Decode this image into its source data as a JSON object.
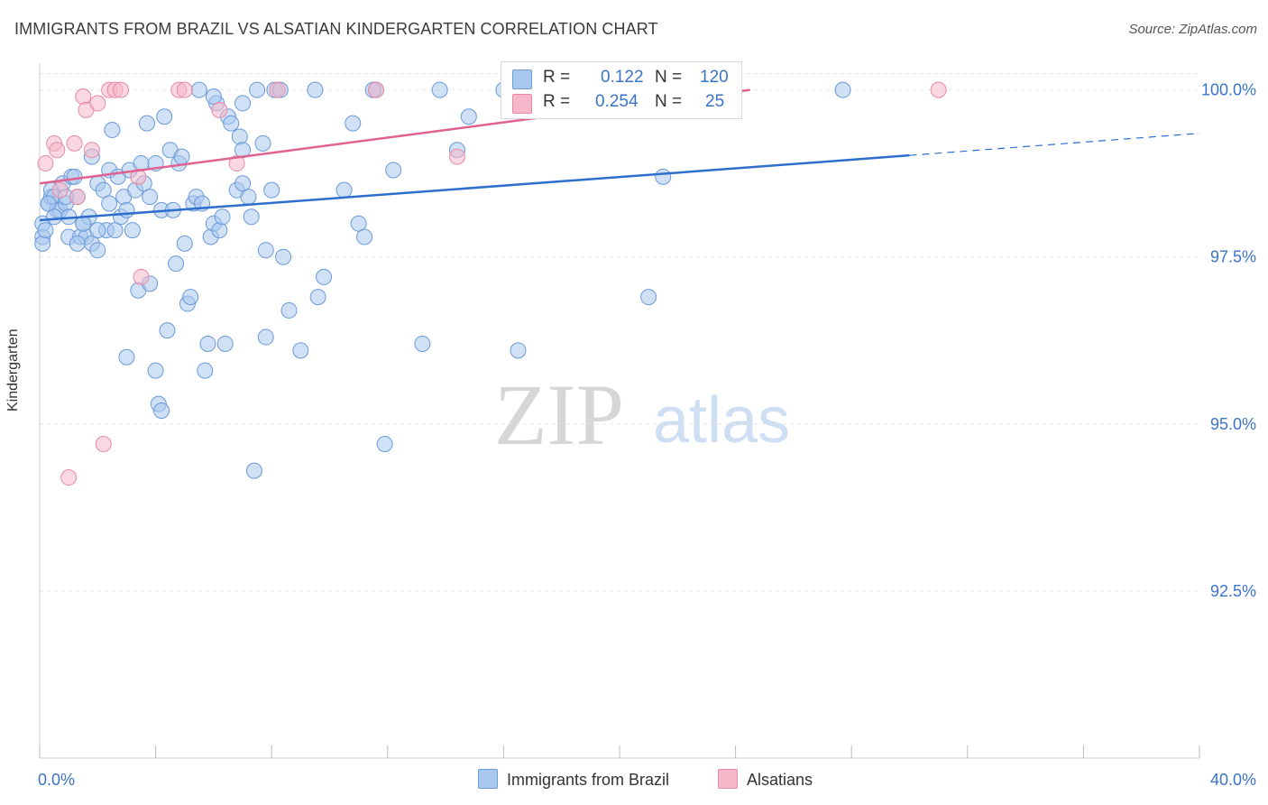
{
  "header": {
    "title": "IMMIGRANTS FROM BRAZIL VS ALSATIAN KINDERGARTEN CORRELATION CHART",
    "source": "Source: ZipAtlas.com"
  },
  "watermark": {
    "zip": "ZIP",
    "atlas": "atlas"
  },
  "legend": {
    "r_label": "R =",
    "n_label": "N =",
    "rows": [
      {
        "r": "0.122",
        "n": "120",
        "color": "#a9c8ef"
      },
      {
        "r": "0.254",
        "n": "25",
        "color": "#f6b8c9"
      }
    ]
  },
  "colors": {
    "blue_fill": "#a9c8ef",
    "blue_stroke": "#6b9ad8",
    "blue_line": "#2e6fcc",
    "pink_fill": "#f6b8c9",
    "pink_stroke": "#e68aa6",
    "pink_line": "#e06290",
    "axis_label": "#3a74c9",
    "grid": "#e6e6e6"
  },
  "chart_data": {
    "type": "scatter",
    "title": "IMMIGRANTS FROM BRAZIL VS ALSATIAN KINDERGARTEN CORRELATION CHART",
    "xlabel": "",
    "ylabel": "Kindergarten",
    "xlim": [
      0,
      40
    ],
    "ylim": [
      90.0,
      100.4
    ],
    "x_tick_labels": [
      "0.0%",
      "40.0%"
    ],
    "y_ticks": [
      {
        "value": 100.0,
        "label": "100.0%"
      },
      {
        "value": 97.5,
        "label": "97.5%"
      },
      {
        "value": 95.0,
        "label": "95.0%"
      },
      {
        "value": 92.5,
        "label": "92.5%"
      }
    ],
    "series": [
      {
        "name": "Immigrants from Brazil",
        "R": 0.122,
        "N": 120,
        "trend": {
          "x0": 0.0,
          "y0": 98.05,
          "x1": 30.0,
          "y1": 99.02,
          "dash_to_x": 40.0,
          "dash_to_y": 99.35
        },
        "points": [
          [
            0.1,
            97.8
          ],
          [
            0.1,
            98.0
          ],
          [
            0.1,
            97.7
          ],
          [
            0.2,
            97.9
          ],
          [
            0.3,
            98.3
          ],
          [
            0.4,
            98.4
          ],
          [
            0.4,
            98.5
          ],
          [
            0.5,
            98.4
          ],
          [
            0.6,
            98.2
          ],
          [
            0.7,
            98.2
          ],
          [
            0.8,
            98.6
          ],
          [
            0.9,
            98.3
          ],
          [
            1.0,
            98.1
          ],
          [
            1.0,
            97.8
          ],
          [
            1.1,
            98.7
          ],
          [
            1.2,
            98.7
          ],
          [
            1.3,
            98.4
          ],
          [
            1.4,
            97.8
          ],
          [
            1.5,
            98.0
          ],
          [
            1.6,
            97.8
          ],
          [
            1.7,
            98.1
          ],
          [
            1.8,
            97.7
          ],
          [
            1.8,
            99.0
          ],
          [
            2.0,
            98.6
          ],
          [
            2.0,
            97.6
          ],
          [
            2.2,
            98.5
          ],
          [
            2.3,
            97.9
          ],
          [
            2.4,
            98.8
          ],
          [
            2.4,
            98.3
          ],
          [
            2.5,
            99.4
          ],
          [
            2.6,
            97.9
          ],
          [
            2.7,
            98.7
          ],
          [
            2.8,
            98.1
          ],
          [
            2.9,
            98.4
          ],
          [
            3.0,
            96.0
          ],
          [
            3.1,
            98.8
          ],
          [
            3.2,
            97.9
          ],
          [
            3.3,
            98.5
          ],
          [
            3.4,
            97.0
          ],
          [
            3.5,
            98.9
          ],
          [
            3.6,
            98.6
          ],
          [
            3.7,
            99.5
          ],
          [
            3.8,
            98.4
          ],
          [
            3.8,
            97.1
          ],
          [
            4.0,
            98.9
          ],
          [
            4.0,
            95.8
          ],
          [
            4.1,
            95.3
          ],
          [
            4.2,
            95.2
          ],
          [
            4.2,
            98.2
          ],
          [
            4.3,
            99.6
          ],
          [
            4.4,
            96.4
          ],
          [
            4.5,
            99.1
          ],
          [
            4.6,
            98.2
          ],
          [
            4.7,
            97.4
          ],
          [
            4.8,
            98.9
          ],
          [
            4.9,
            99.0
          ],
          [
            5.0,
            97.7
          ],
          [
            5.1,
            96.8
          ],
          [
            5.2,
            96.9
          ],
          [
            5.3,
            98.3
          ],
          [
            5.4,
            98.4
          ],
          [
            5.5,
            100.0
          ],
          [
            5.6,
            98.3
          ],
          [
            5.7,
            95.8
          ],
          [
            5.8,
            96.2
          ],
          [
            5.9,
            97.8
          ],
          [
            6.0,
            98.0
          ],
          [
            6.1,
            99.8
          ],
          [
            6.2,
            97.9
          ],
          [
            6.3,
            98.1
          ],
          [
            6.4,
            96.2
          ],
          [
            6.5,
            99.6
          ],
          [
            6.6,
            99.5
          ],
          [
            6.8,
            98.5
          ],
          [
            6.9,
            99.3
          ],
          [
            7.0,
            99.8
          ],
          [
            7.0,
            99.1
          ],
          [
            7.2,
            98.4
          ],
          [
            7.3,
            98.1
          ],
          [
            7.4,
            94.3
          ],
          [
            7.5,
            100.0
          ],
          [
            7.7,
            99.2
          ],
          [
            7.8,
            96.3
          ],
          [
            7.8,
            97.6
          ],
          [
            8.0,
            98.5
          ],
          [
            8.1,
            100.0
          ],
          [
            8.3,
            100.0
          ],
          [
            8.4,
            97.5
          ],
          [
            8.6,
            96.7
          ],
          [
            9.0,
            96.1
          ],
          [
            9.5,
            100.0
          ],
          [
            9.6,
            96.9
          ],
          [
            9.8,
            97.2
          ],
          [
            10.5,
            98.5
          ],
          [
            10.8,
            99.5
          ],
          [
            11.0,
            98.0
          ],
          [
            11.2,
            97.8
          ],
          [
            11.6,
            100.0
          ],
          [
            11.9,
            94.7
          ],
          [
            12.2,
            98.8
          ],
          [
            13.2,
            96.2
          ],
          [
            13.8,
            100.0
          ],
          [
            14.4,
            99.1
          ],
          [
            14.8,
            99.6
          ],
          [
            16.0,
            100.0
          ],
          [
            16.2,
            100.0
          ],
          [
            16.5,
            96.1
          ],
          [
            21.0,
            96.9
          ],
          [
            21.5,
            98.7
          ],
          [
            27.7,
            100.0
          ],
          [
            0.3,
            98.3
          ],
          [
            1.5,
            98.0
          ],
          [
            2.0,
            97.9
          ],
          [
            3.0,
            98.2
          ],
          [
            6.0,
            99.9
          ],
          [
            7.0,
            98.6
          ],
          [
            11.5,
            100.0
          ],
          [
            0.5,
            98.1
          ],
          [
            0.9,
            98.4
          ],
          [
            1.3,
            97.7
          ]
        ]
      },
      {
        "name": "Alsatians",
        "R": 0.254,
        "N": 25,
        "trend": {
          "x0": 0.0,
          "y0": 98.6,
          "x1": 24.5,
          "y1": 100.0
        },
        "points": [
          [
            0.2,
            98.9
          ],
          [
            0.5,
            99.2
          ],
          [
            0.6,
            99.1
          ],
          [
            0.7,
            98.5
          ],
          [
            1.0,
            94.2
          ],
          [
            1.2,
            99.2
          ],
          [
            1.3,
            98.4
          ],
          [
            1.5,
            99.9
          ],
          [
            1.6,
            99.7
          ],
          [
            1.8,
            99.1
          ],
          [
            2.0,
            99.8
          ],
          [
            2.2,
            94.7
          ],
          [
            2.4,
            100.0
          ],
          [
            2.6,
            100.0
          ],
          [
            2.8,
            100.0
          ],
          [
            3.4,
            98.7
          ],
          [
            3.5,
            97.2
          ],
          [
            4.8,
            100.0
          ],
          [
            5.0,
            100.0
          ],
          [
            6.2,
            99.7
          ],
          [
            6.8,
            98.9
          ],
          [
            8.2,
            100.0
          ],
          [
            11.6,
            100.0
          ],
          [
            14.4,
            99.0
          ],
          [
            31.0,
            100.0
          ]
        ]
      }
    ]
  }
}
